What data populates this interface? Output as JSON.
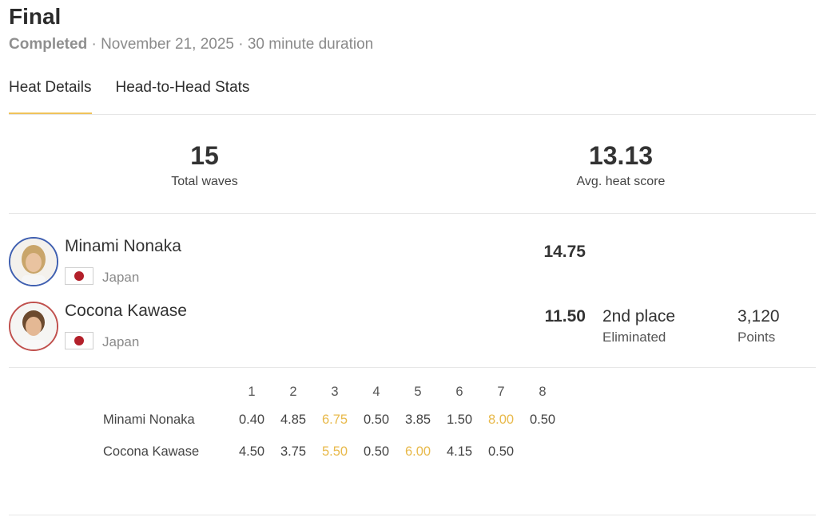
{
  "header": {
    "title": "Final",
    "status": "Completed",
    "date": "November 21, 2025",
    "duration": "30 minute duration",
    "separator": "·"
  },
  "tabs": [
    {
      "label": "Heat Details",
      "active": true
    },
    {
      "label": "Head-to-Head Stats",
      "active": false
    }
  ],
  "stats": {
    "total_waves": {
      "value": "15",
      "label": "Total waves"
    },
    "avg_heat_score": {
      "value": "13.13",
      "label": "Avg. heat score"
    }
  },
  "athletes": [
    {
      "name": "Minami Nonaka",
      "country": "Japan",
      "score": "14.75",
      "avatar_ring": "#3f5fb0"
    },
    {
      "name": "Cocona Kawase",
      "country": "Japan",
      "score": "11.50",
      "place": "2nd place",
      "result": "Eliminated",
      "points": "3,120",
      "points_label": "Points",
      "avatar_ring": "#c0504d"
    }
  ],
  "wave_table": {
    "columns": [
      "1",
      "2",
      "3",
      "4",
      "5",
      "6",
      "7",
      "8"
    ],
    "rows": [
      {
        "name": "Minami Nonaka",
        "scores": [
          "0.40",
          "4.85",
          "6.75",
          "0.50",
          "3.85",
          "1.50",
          "8.00",
          "0.50"
        ],
        "best_indices": [
          2,
          6
        ]
      },
      {
        "name": "Cocona Kawase",
        "scores": [
          "4.50",
          "3.75",
          "5.50",
          "0.50",
          "6.00",
          "4.15",
          "0.50",
          ""
        ],
        "best_indices": [
          2,
          4
        ]
      }
    ],
    "best_color": "#e8b94a"
  },
  "colors": {
    "tab_indicator": "#f0c35a",
    "flag_red": "#b3202a"
  },
  "icons": {
    "flag": "japan-flag-icon",
    "avatar": "athlete-photo"
  }
}
